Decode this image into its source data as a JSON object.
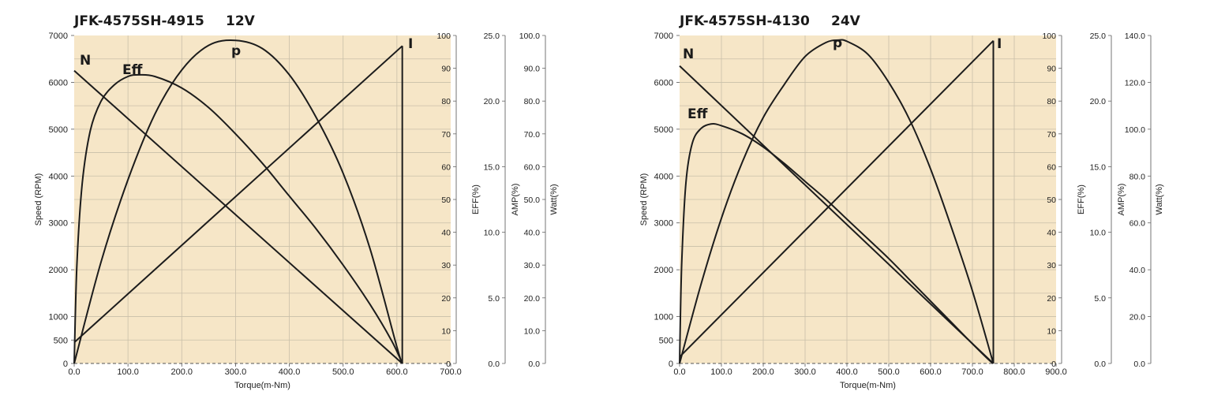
{
  "chart_data": [
    {
      "type": "line",
      "title": "JFK-4575SH-4915",
      "voltage": "12V",
      "xlabel": "Torque(m-Nm)",
      "xlim": [
        0,
        700
      ],
      "x_ticks": [
        "0.0",
        "100.0",
        "200.0",
        "300.0",
        "400.0",
        "500.0",
        "600.0",
        "700.0"
      ],
      "axes": {
        "speed": {
          "label": "Speed (RPM)",
          "lim": [
            0,
            7000
          ],
          "ticks": [
            "0",
            "500",
            "1000",
            "2000",
            "3000",
            "4000",
            "5000",
            "6000",
            "7000"
          ]
        },
        "eff": {
          "label": "EFF(%)",
          "lim": [
            0,
            100
          ],
          "ticks": [
            "0",
            "10",
            "20",
            "30",
            "40",
            "50",
            "60",
            "70",
            "80",
            "90",
            "100"
          ]
        },
        "amp": {
          "label": "AMP(%)",
          "lim": [
            0,
            25
          ],
          "ticks": [
            "0.0",
            "5.0",
            "10.0",
            "15.0",
            "20.0",
            "25.0"
          ]
        },
        "watt": {
          "label": "Watt(%)",
          "lim": [
            0,
            100
          ],
          "ticks": [
            "0.0",
            "10.0",
            "20.0",
            "30.0",
            "40.0",
            "50.0",
            "60.0",
            "70.0",
            "80.0",
            "90.0",
            "100.0"
          ]
        }
      },
      "series": [
        {
          "name": "N",
          "axis": "speed",
          "x": [
            0,
            610
          ],
          "y": [
            6250,
            0
          ]
        },
        {
          "name": "I",
          "axis": "amp",
          "x": [
            0,
            610
          ],
          "y": [
            1.6,
            24.2
          ]
        },
        {
          "name": "Eff",
          "axis": "eff",
          "x": [
            0,
            5,
            15,
            30,
            50,
            75,
            100,
            120,
            150,
            200,
            250,
            300,
            350,
            400,
            450,
            500,
            550,
            590,
            610
          ],
          "y": [
            0,
            30,
            55,
            71,
            80,
            85,
            87.5,
            88,
            87.5,
            84,
            78,
            70,
            61,
            51,
            41,
            30,
            18,
            7,
            0
          ]
        },
        {
          "name": "p",
          "axis": "watt",
          "x": [
            0,
            50,
            100,
            150,
            200,
            250,
            300,
            350,
            400,
            450,
            500,
            550,
            600,
            610
          ],
          "y": [
            0,
            31,
            56,
            76,
            89.5,
            97,
            98.5,
            96,
            88,
            75,
            58,
            35,
            5,
            0
          ]
        }
      ]
    },
    {
      "type": "line",
      "title": "JFK-4575SH-4130",
      "voltage": "24V",
      "xlabel": "Torque(m-Nm)",
      "xlim": [
        0,
        900
      ],
      "x_ticks": [
        "0.0",
        "100.0",
        "200.0",
        "300.0",
        "400.0",
        "500.0",
        "600.0",
        "700.0",
        "800.0",
        "900.0"
      ],
      "axes": {
        "speed": {
          "label": "Speed (RPM)",
          "lim": [
            0,
            7000
          ],
          "ticks": [
            "0",
            "500",
            "1000",
            "2000",
            "3000",
            "4000",
            "5000",
            "6000",
            "7000"
          ]
        },
        "eff": {
          "label": "EFF(%)",
          "lim": [
            0,
            100
          ],
          "ticks": [
            "0",
            "10",
            "20",
            "30",
            "40",
            "50",
            "60",
            "70",
            "80",
            "90",
            "100"
          ]
        },
        "amp": {
          "label": "AMP(%)",
          "lim": [
            0,
            25
          ],
          "ticks": [
            "0.0",
            "5.0",
            "10.0",
            "15.0",
            "20.0",
            "25.0"
          ]
        },
        "watt": {
          "label": "Watt(%)",
          "lim": [
            0,
            140
          ],
          "ticks": [
            "0.0",
            "20.0",
            "40.0",
            "60.0",
            "80.0",
            "100.0",
            "120.0",
            "140.0"
          ]
        }
      },
      "series": [
        {
          "name": "N",
          "axis": "speed",
          "x": [
            0,
            750
          ],
          "y": [
            6350,
            0
          ]
        },
        {
          "name": "I",
          "axis": "amp",
          "x": [
            0,
            750
          ],
          "y": [
            0.5,
            24.6
          ]
        },
        {
          "name": "Eff",
          "axis": "eff",
          "x": [
            0,
            5,
            15,
            30,
            50,
            75,
            100,
            150,
            200,
            250,
            300,
            350,
            400,
            450,
            500,
            550,
            600,
            650,
            700,
            740,
            750
          ],
          "y": [
            0,
            30,
            55,
            67,
            71.5,
            73,
            72.5,
            70,
            66,
            61,
            55.5,
            50,
            44,
            38,
            32,
            25.5,
            19,
            12.5,
            6,
            1,
            0
          ]
        },
        {
          "name": "p",
          "axis": "watt",
          "x": [
            0,
            50,
            100,
            150,
            200,
            250,
            300,
            350,
            380,
            400,
            450,
            500,
            550,
            600,
            650,
            700,
            750
          ],
          "y": [
            0,
            33,
            62,
            86,
            105,
            119,
            131,
            137,
            138,
            137.5,
            132,
            120,
            104,
            83,
            58,
            31,
            0
          ]
        }
      ]
    }
  ]
}
